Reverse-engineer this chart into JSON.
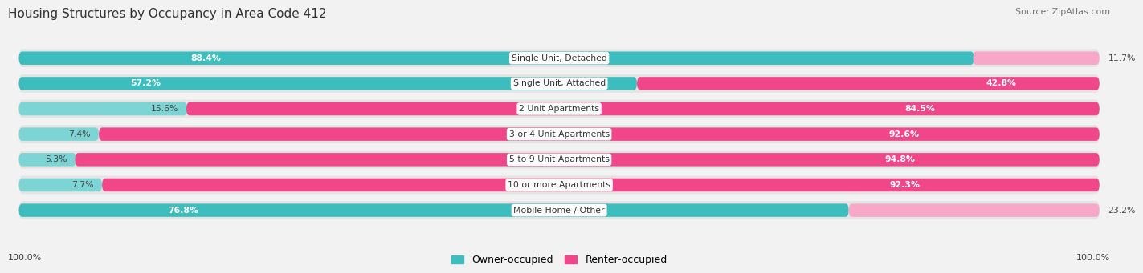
{
  "title": "Housing Structures by Occupancy in Area Code 412",
  "source": "Source: ZipAtlas.com",
  "categories": [
    "Single Unit, Detached",
    "Single Unit, Attached",
    "2 Unit Apartments",
    "3 or 4 Unit Apartments",
    "5 to 9 Unit Apartments",
    "10 or more Apartments",
    "Mobile Home / Other"
  ],
  "owner_pct": [
    88.4,
    57.2,
    15.6,
    7.4,
    5.3,
    7.7,
    76.8
  ],
  "renter_pct": [
    11.7,
    42.8,
    84.5,
    92.6,
    94.8,
    92.3,
    23.2
  ],
  "owner_color": "#3dbdbd",
  "owner_color_light": "#7dd4d4",
  "renter_color_hot": "#f0478a",
  "renter_color_light": "#f7a8c8",
  "bg_color": "#f2f2f2",
  "row_bg": "#e4e4e4",
  "title_color": "#333333",
  "source_color": "#777777",
  "legend_owner": "Owner-occupied",
  "legend_renter": "Renter-occupied",
  "bottom_labels": [
    "100.0%",
    "100.0%"
  ]
}
